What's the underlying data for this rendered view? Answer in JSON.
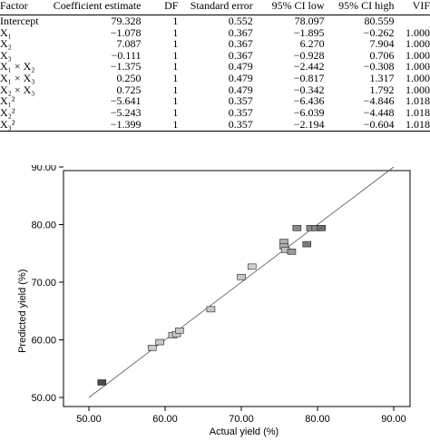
{
  "table": {
    "headers": [
      "Factor",
      "Coefficient estimate",
      "DF",
      "Standard error",
      "95% CI low",
      "95% CI high",
      "VIF"
    ],
    "rows": [
      {
        "factor": "Intercept",
        "coef": "79.328",
        "df": "1",
        "se": "0.552",
        "low": "78.097",
        "high": "80.559",
        "vif": ""
      },
      {
        "factor": "X₁",
        "coef": "−1.078",
        "df": "1",
        "se": "0.367",
        "low": "−1.895",
        "high": "−0.262",
        "vif": "1.000"
      },
      {
        "factor": "X₂",
        "coef": "7.087",
        "df": "1",
        "se": "0.367",
        "low": "6.270",
        "high": "7.904",
        "vif": "1.000"
      },
      {
        "factor": "X₃",
        "coef": "−0.111",
        "df": "1",
        "se": "0.367",
        "low": "−0.928",
        "high": "0.706",
        "vif": "1.000"
      },
      {
        "factor": "X₁ × X₂",
        "coef": "−1.375",
        "df": "1",
        "se": "0.479",
        "low": "−2.442",
        "high": "−0.308",
        "vif": "1.000"
      },
      {
        "factor": "X₁ × X₃",
        "coef": "0.250",
        "df": "1",
        "se": "0.479",
        "low": "−0.817",
        "high": "1.317",
        "vif": "1.000"
      },
      {
        "factor": "X₂ × X₃",
        "coef": "0.725",
        "df": "1",
        "se": "0.479",
        "low": "−0.342",
        "high": "1.792",
        "vif": "1.000"
      },
      {
        "factor": "X₁²",
        "coef": "−5.641",
        "df": "1",
        "se": "0.357",
        "low": "−6.436",
        "high": "−4.846",
        "vif": "1.018"
      },
      {
        "factor": "X₂²",
        "coef": "−5.243",
        "df": "1",
        "se": "0.357",
        "low": "−6.039",
        "high": "−4.448",
        "vif": "1.018"
      },
      {
        "factor": "X₃²",
        "coef": "−1.399",
        "df": "1",
        "se": "0.357",
        "low": "−2.194",
        "high": "−0.604",
        "vif": "1.018"
      }
    ]
  },
  "chart_data": {
    "type": "scatter",
    "title": "",
    "xlabel": "Actual yield (%)",
    "ylabel": "Predicted yield (%)",
    "xlim": [
      50,
      90
    ],
    "ylim": [
      50,
      90
    ],
    "x_ticks": [
      "50.00",
      "60.00",
      "70.00",
      "80.00",
      "90.00"
    ],
    "y_ticks": [
      "50.00",
      "60.00",
      "70.00",
      "80.00",
      "90.00"
    ],
    "grid": false,
    "reference_line": {
      "from": [
        50,
        50
      ],
      "to": [
        90,
        90
      ]
    },
    "points": [
      {
        "x": 51.7,
        "y": 52.6,
        "shade": "#4a4a4a"
      },
      {
        "x": 58.3,
        "y": 58.6,
        "shade": "#c8c8c8"
      },
      {
        "x": 59.3,
        "y": 59.6,
        "shade": "#c8c8c8"
      },
      {
        "x": 61.0,
        "y": 60.8,
        "shade": "#c8c8c8"
      },
      {
        "x": 61.5,
        "y": 61.0,
        "shade": "#c8c8c8"
      },
      {
        "x": 61.9,
        "y": 61.6,
        "shade": "#c8c8c8"
      },
      {
        "x": 66.0,
        "y": 65.3,
        "shade": "#c8c8c8"
      },
      {
        "x": 70.0,
        "y": 70.9,
        "shade": "#c8c8c8"
      },
      {
        "x": 71.4,
        "y": 72.7,
        "shade": "#d0d0d0"
      },
      {
        "x": 75.6,
        "y": 77.0,
        "shade": "#b0b0b0"
      },
      {
        "x": 75.6,
        "y": 76.2,
        "shade": "#b0b0b0"
      },
      {
        "x": 75.8,
        "y": 75.6,
        "shade": "#c0c0c0"
      },
      {
        "x": 76.6,
        "y": 75.3,
        "shade": "#9a9a9a"
      },
      {
        "x": 77.3,
        "y": 79.4,
        "shade": "#8a8a8a"
      },
      {
        "x": 78.6,
        "y": 76.6,
        "shade": "#7a7a7a"
      },
      {
        "x": 79.1,
        "y": 79.4,
        "shade": "#8a8a8a"
      },
      {
        "x": 79.8,
        "y": 79.4,
        "shade": "#8a8a8a"
      },
      {
        "x": 80.5,
        "y": 79.4,
        "shade": "#6e6e6e"
      }
    ]
  }
}
